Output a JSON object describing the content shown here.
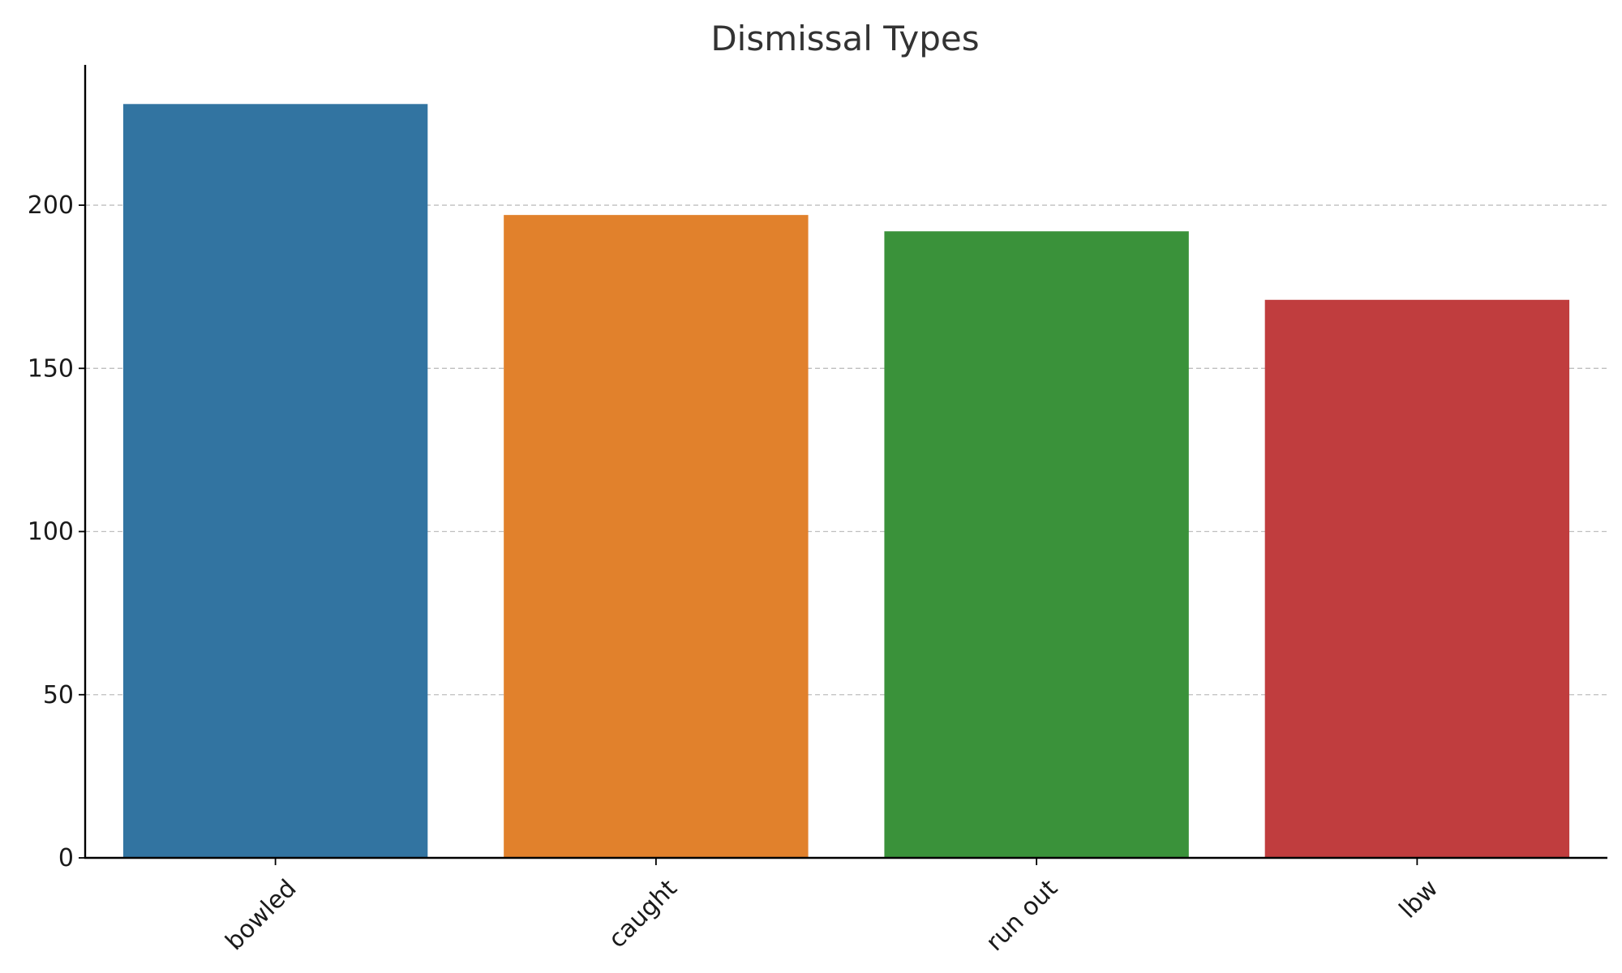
{
  "chart_data": {
    "type": "bar",
    "title": "Dismissal Types",
    "xlabel": "",
    "ylabel": "",
    "categories": [
      "bowled",
      "caught",
      "run out",
      "lbw"
    ],
    "values": [
      231,
      197,
      192,
      171
    ],
    "colors": [
      "#3274a1",
      "#e1812c",
      "#3a923a",
      "#c03d3e"
    ],
    "ylim": [
      0,
      243
    ],
    "yticks": [
      0,
      50,
      100,
      150,
      200
    ],
    "grid": true,
    "grid_axis": "y",
    "xtick_rotation": 45,
    "legend": false
  }
}
